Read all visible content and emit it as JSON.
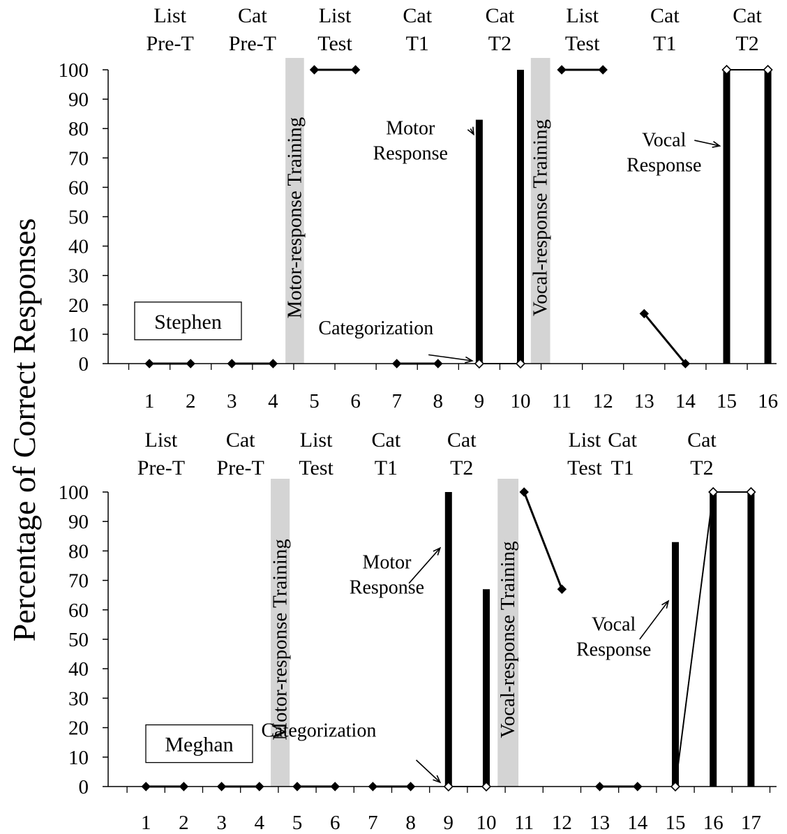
{
  "y_axis_label": "Percentage of Correct Responses",
  "chart_data": [
    {
      "type": "bar",
      "participant": "Stephen",
      "ylim": [
        0,
        100
      ],
      "y_ticks": [
        0,
        10,
        20,
        30,
        40,
        50,
        60,
        70,
        80,
        90,
        100
      ],
      "x_ticks": [
        1,
        2,
        3,
        4,
        5,
        6,
        7,
        8,
        9,
        10,
        11,
        12,
        13,
        14,
        15,
        16
      ],
      "xlim": [
        0,
        16.3
      ],
      "phase_labels": [
        {
          "line1": "List",
          "line2": "Pre-T",
          "x": 1.5
        },
        {
          "line1": "Cat",
          "line2": "Pre-T",
          "x": 3.5
        },
        {
          "line1": "List",
          "line2": "Test",
          "x": 5.5
        },
        {
          "line1": "Cat",
          "line2": "T1",
          "x": 7.5
        },
        {
          "line1": "Cat",
          "line2": "T2",
          "x": 9.5
        },
        {
          "line1": "List",
          "line2": "Test",
          "x": 11.5
        },
        {
          "line1": "Cat",
          "line2": "T1",
          "x": 13.5
        },
        {
          "line1": "Cat",
          "line2": "T2",
          "x": 15.5
        }
      ],
      "training_bands": [
        {
          "label": "Motor-response Training",
          "x_from": 4.3,
          "x_to": 4.75
        },
        {
          "label": "Vocal-response Training",
          "x_from": 10.25,
          "x_to": 10.72
        }
      ],
      "line_segments": [
        {
          "x": [
            1,
            2
          ],
          "y": [
            0,
            0
          ],
          "marker": "filled"
        },
        {
          "x": [
            3,
            4
          ],
          "y": [
            0,
            0
          ],
          "marker": "filled"
        },
        {
          "x": [
            5,
            6
          ],
          "y": [
            100,
            100
          ],
          "marker": "filled"
        },
        {
          "x": [
            7,
            8
          ],
          "y": [
            0,
            0
          ],
          "marker": "filled"
        },
        {
          "x": [
            9,
            10
          ],
          "y": [
            0,
            0
          ],
          "marker": "open"
        },
        {
          "x": [
            11,
            12
          ],
          "y": [
            100,
            100
          ],
          "marker": "filled"
        },
        {
          "x": [
            13,
            14
          ],
          "y": [
            17,
            0
          ],
          "marker": "filled"
        },
        {
          "x": [
            15,
            16
          ],
          "y": [
            100,
            100
          ],
          "marker": "open"
        }
      ],
      "bars": [
        {
          "x": 9,
          "value": 83
        },
        {
          "x": 10,
          "value": 100
        },
        {
          "x": 15,
          "value": 100
        },
        {
          "x": 16,
          "value": 100
        }
      ],
      "annotations": [
        {
          "lines": [
            "Motor",
            "Response"
          ],
          "anchor": "left",
          "x": 6.35,
          "y": 78
        },
        {
          "lines": [
            "Categorization"
          ],
          "anchor": "left",
          "x": 5.1,
          "y": 10
        },
        {
          "lines": [
            "Vocal",
            "Response"
          ],
          "anchor": "left",
          "x": 12.5,
          "y": 74
        }
      ]
    },
    {
      "type": "bar",
      "participant": "Meghan",
      "ylim": [
        0,
        100
      ],
      "y_ticks": [
        0,
        10,
        20,
        30,
        40,
        50,
        60,
        70,
        80,
        90,
        100
      ],
      "x_ticks": [
        1,
        2,
        3,
        4,
        5,
        6,
        7,
        8,
        9,
        10,
        11,
        12,
        13,
        14,
        15,
        16,
        17
      ],
      "xlim": [
        0,
        17.3
      ],
      "phase_labels": [
        {
          "line1": "List",
          "line2": "Pre-T",
          "x": 1.4
        },
        {
          "line1": "Cat",
          "line2": "Pre-T",
          "x": 3.5
        },
        {
          "line1": "List",
          "line2": "Test",
          "x": 5.5
        },
        {
          "line1": "Cat",
          "line2": "T1",
          "x": 7.35
        },
        {
          "line1": "Cat",
          "line2": "T2",
          "x": 9.35
        },
        {
          "line1": "List",
          "line2": "Test",
          "x": 12.6
        },
        {
          "line1": "Cat",
          "line2": "T1",
          "x": 13.6
        },
        {
          "line1": "Cat",
          "line2": "T2",
          "x": 15.7
        }
      ],
      "training_bands": [
        {
          "label": "Motor-response Training",
          "x_from": 4.3,
          "x_to": 4.8
        },
        {
          "label": "Vocal-response Training",
          "x_from": 10.3,
          "x_to": 10.85
        }
      ],
      "line_segments": [
        {
          "x": [
            1,
            2
          ],
          "y": [
            0,
            0
          ],
          "marker": "filled"
        },
        {
          "x": [
            3,
            4
          ],
          "y": [
            0,
            0
          ],
          "marker": "filled"
        },
        {
          "x": [
            5,
            6
          ],
          "y": [
            0,
            0
          ],
          "marker": "filled"
        },
        {
          "x": [
            7,
            8
          ],
          "y": [
            0,
            0
          ],
          "marker": "filled"
        },
        {
          "x": [
            9,
            10
          ],
          "y": [
            0,
            0
          ],
          "marker": "open"
        },
        {
          "x": [
            11,
            12
          ],
          "y": [
            100,
            67
          ],
          "marker": "filled"
        },
        {
          "x": [
            13,
            14
          ],
          "y": [
            0,
            0
          ],
          "marker": "filled"
        },
        {
          "x": [
            15,
            16,
            17
          ],
          "y": [
            0,
            100,
            100
          ],
          "marker": "open"
        }
      ],
      "bars": [
        {
          "x": 9,
          "value": 100
        },
        {
          "x": 10,
          "value": 67
        },
        {
          "x": 15,
          "value": 83
        },
        {
          "x": 16,
          "value": 100
        },
        {
          "x": 17,
          "value": 100
        }
      ],
      "annotations": [
        {
          "lines": [
            "Motor",
            "Response"
          ],
          "anchor": "left",
          "x": 6.3,
          "y": 74
        },
        {
          "lines": [
            "Categorization"
          ],
          "anchor": "left",
          "x": 4.05,
          "y": 17
        },
        {
          "lines": [
            "Vocal",
            "Response"
          ],
          "anchor": "left",
          "x": 12.3,
          "y": 53
        }
      ]
    }
  ]
}
